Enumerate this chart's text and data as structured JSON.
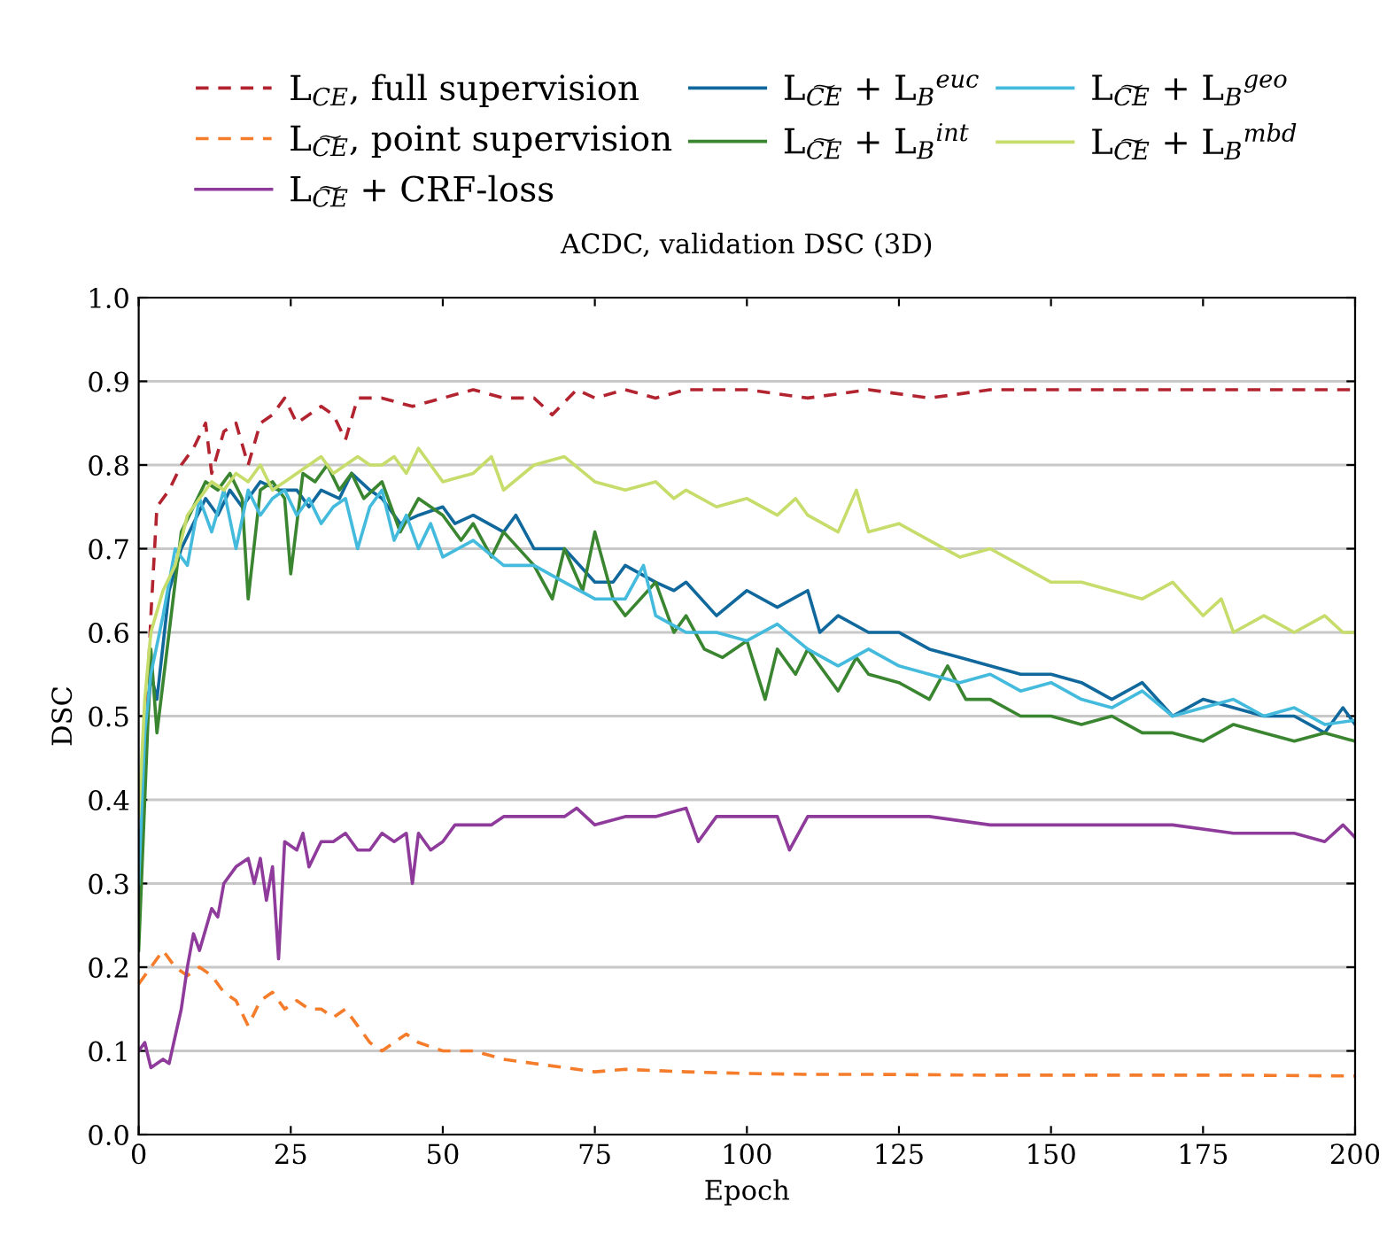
{
  "chart_data": {
    "type": "line",
    "title": "ACDC, validation DSC (3D)",
    "xlabel": "Epoch",
    "ylabel": "DSC",
    "xlim": [
      0,
      200
    ],
    "xticks": [
      0,
      25,
      50,
      75,
      100,
      125,
      150,
      175,
      200
    ],
    "ylim": [
      0,
      1.0
    ],
    "yticks": [
      {
        "value": 0,
        "label": "0.0"
      },
      0.1,
      0.2,
      0.3,
      0.4,
      0.5,
      0.6,
      0.7,
      0.8,
      0.9,
      {
        "value": 1.0,
        "label": "1.0"
      }
    ],
    "grid": "y",
    "legend": "top",
    "series": [
      {
        "name": "L$_{CE}$, full supervision",
        "color": "#b2242f",
        "line_style": "dashed",
        "x": [
          0,
          1,
          2,
          3,
          5,
          7,
          9,
          11,
          12,
          14,
          16,
          18,
          20,
          22,
          24,
          26,
          28,
          30,
          32,
          34,
          36,
          40,
          45,
          50,
          55,
          60,
          65,
          68,
          72,
          75,
          80,
          85,
          90,
          100,
          110,
          120,
          130,
          140,
          150,
          160,
          170,
          180,
          190,
          200
        ],
        "values": [
          0.3,
          0.45,
          0.62,
          0.75,
          0.77,
          0.8,
          0.82,
          0.85,
          0.79,
          0.84,
          0.85,
          0.8,
          0.85,
          0.86,
          0.88,
          0.85,
          0.86,
          0.87,
          0.86,
          0.83,
          0.88,
          0.88,
          0.87,
          0.88,
          0.89,
          0.88,
          0.88,
          0.86,
          0.89,
          0.88,
          0.89,
          0.88,
          0.89,
          0.89,
          0.88,
          0.89,
          0.88,
          0.89,
          0.89,
          0.89,
          0.89,
          0.89,
          0.89,
          0.89
        ]
      },
      {
        "name": "L$_{C͠E}$, point supervision",
        "color": "#f47c2a",
        "line_style": "dashed",
        "x": [
          0,
          2,
          4,
          6,
          8,
          10,
          12,
          14,
          16,
          18,
          20,
          22,
          24,
          26,
          28,
          30,
          32,
          34,
          36,
          38,
          40,
          42,
          44,
          46,
          50,
          55,
          60,
          65,
          70,
          75,
          80,
          90,
          100,
          110,
          120,
          140,
          160,
          180,
          200
        ],
        "values": [
          0.18,
          0.2,
          0.22,
          0.2,
          0.19,
          0.2,
          0.19,
          0.17,
          0.16,
          0.13,
          0.16,
          0.17,
          0.15,
          0.16,
          0.15,
          0.15,
          0.14,
          0.15,
          0.13,
          0.11,
          0.1,
          0.11,
          0.12,
          0.11,
          0.1,
          0.1,
          0.09,
          0.085,
          0.08,
          0.075,
          0.078,
          0.075,
          0.073,
          0.072,
          0.072,
          0.071,
          0.071,
          0.071,
          0.07
        ]
      },
      {
        "name": "L$_{C͠E}$ + CRF-loss",
        "color": "#8e3b9b",
        "line_style": "solid",
        "x": [
          0,
          1,
          2,
          4,
          5,
          7,
          8,
          9,
          10,
          12,
          13,
          14,
          16,
          18,
          19,
          20,
          21,
          22,
          23,
          24,
          26,
          27,
          28,
          30,
          32,
          34,
          36,
          38,
          40,
          42,
          44,
          45,
          46,
          48,
          50,
          52,
          55,
          58,
          60,
          65,
          70,
          72,
          75,
          80,
          85,
          90,
          92,
          95,
          100,
          105,
          107,
          110,
          120,
          130,
          140,
          150,
          160,
          170,
          180,
          185,
          190,
          195,
          198,
          200
        ],
        "values": [
          0.1,
          0.11,
          0.08,
          0.09,
          0.085,
          0.15,
          0.2,
          0.24,
          0.22,
          0.27,
          0.26,
          0.3,
          0.32,
          0.33,
          0.3,
          0.33,
          0.28,
          0.32,
          0.21,
          0.35,
          0.34,
          0.36,
          0.32,
          0.35,
          0.35,
          0.36,
          0.34,
          0.34,
          0.36,
          0.35,
          0.36,
          0.3,
          0.36,
          0.34,
          0.35,
          0.37,
          0.37,
          0.37,
          0.38,
          0.38,
          0.38,
          0.39,
          0.37,
          0.38,
          0.38,
          0.39,
          0.35,
          0.38,
          0.38,
          0.38,
          0.34,
          0.38,
          0.38,
          0.38,
          0.37,
          0.37,
          0.37,
          0.37,
          0.36,
          0.36,
          0.36,
          0.35,
          0.37,
          0.355
        ]
      },
      {
        "name": "L$_{C͠E}$ + L$_{B}$$^{euc}$",
        "color": "#10689c",
        "line_style": "solid",
        "x": [
          0,
          1,
          2,
          3,
          5,
          7,
          9,
          11,
          13,
          15,
          17,
          20,
          23,
          26,
          28,
          30,
          33,
          35,
          38,
          40,
          43,
          46,
          50,
          52,
          55,
          60,
          62,
          65,
          70,
          75,
          78,
          80,
          85,
          88,
          90,
          95,
          100,
          105,
          110,
          112,
          115,
          120,
          125,
          130,
          135,
          140,
          145,
          150,
          155,
          160,
          165,
          170,
          175,
          180,
          185,
          190,
          195,
          198,
          200
        ],
        "values": [
          0.25,
          0.45,
          0.55,
          0.52,
          0.65,
          0.7,
          0.73,
          0.76,
          0.74,
          0.77,
          0.75,
          0.78,
          0.77,
          0.77,
          0.75,
          0.77,
          0.76,
          0.79,
          0.77,
          0.76,
          0.73,
          0.74,
          0.75,
          0.73,
          0.74,
          0.72,
          0.74,
          0.7,
          0.7,
          0.66,
          0.66,
          0.68,
          0.66,
          0.65,
          0.66,
          0.62,
          0.65,
          0.63,
          0.65,
          0.6,
          0.62,
          0.6,
          0.6,
          0.58,
          0.57,
          0.56,
          0.55,
          0.55,
          0.54,
          0.52,
          0.54,
          0.5,
          0.52,
          0.51,
          0.5,
          0.5,
          0.48,
          0.51,
          0.49
        ]
      },
      {
        "name": "L$_{C͠E}$ + L$_{B}$$^{int}$",
        "color": "#3a8530",
        "line_style": "solid",
        "x": [
          0,
          1,
          2,
          3,
          5,
          7,
          9,
          11,
          13,
          15,
          17,
          18,
          20,
          22,
          24,
          25,
          27,
          29,
          31,
          33,
          35,
          37,
          40,
          43,
          46,
          50,
          53,
          55,
          58,
          60,
          65,
          68,
          70,
          73,
          75,
          78,
          80,
          85,
          88,
          90,
          93,
          96,
          100,
          103,
          105,
          108,
          110,
          115,
          118,
          120,
          125,
          130,
          133,
          136,
          140,
          145,
          150,
          155,
          160,
          165,
          170,
          175,
          180,
          185,
          190,
          195,
          200
        ],
        "values": [
          0.22,
          0.4,
          0.58,
          0.48,
          0.6,
          0.72,
          0.75,
          0.78,
          0.77,
          0.79,
          0.76,
          0.64,
          0.77,
          0.78,
          0.76,
          0.67,
          0.79,
          0.78,
          0.8,
          0.77,
          0.79,
          0.76,
          0.78,
          0.72,
          0.76,
          0.74,
          0.71,
          0.73,
          0.69,
          0.72,
          0.68,
          0.64,
          0.7,
          0.65,
          0.72,
          0.64,
          0.62,
          0.66,
          0.6,
          0.62,
          0.58,
          0.57,
          0.59,
          0.52,
          0.58,
          0.55,
          0.58,
          0.53,
          0.57,
          0.55,
          0.54,
          0.52,
          0.56,
          0.52,
          0.52,
          0.5,
          0.5,
          0.49,
          0.5,
          0.48,
          0.48,
          0.47,
          0.49,
          0.48,
          0.47,
          0.48,
          0.47
        ]
      },
      {
        "name": "L$_{C͠E}$ + L$_{B}$$^{geo}$",
        "color": "#44bbdd",
        "line_style": "solid",
        "x": [
          0,
          1,
          2,
          4,
          6,
          8,
          10,
          12,
          14,
          16,
          18,
          20,
          22,
          24,
          26,
          28,
          30,
          32,
          34,
          36,
          38,
          40,
          42,
          44,
          46,
          48,
          50,
          55,
          60,
          65,
          70,
          75,
          80,
          83,
          85,
          90,
          95,
          100,
          105,
          110,
          115,
          120,
          125,
          130,
          135,
          140,
          145,
          150,
          155,
          160,
          165,
          170,
          175,
          180,
          185,
          190,
          195,
          200
        ],
        "values": [
          0.3,
          0.48,
          0.55,
          0.62,
          0.7,
          0.68,
          0.76,
          0.72,
          0.77,
          0.7,
          0.77,
          0.74,
          0.76,
          0.77,
          0.74,
          0.76,
          0.73,
          0.75,
          0.76,
          0.7,
          0.75,
          0.77,
          0.71,
          0.74,
          0.7,
          0.73,
          0.69,
          0.71,
          0.68,
          0.68,
          0.66,
          0.64,
          0.64,
          0.68,
          0.62,
          0.6,
          0.6,
          0.59,
          0.61,
          0.58,
          0.56,
          0.58,
          0.56,
          0.55,
          0.54,
          0.55,
          0.53,
          0.54,
          0.52,
          0.51,
          0.53,
          0.5,
          0.51,
          0.52,
          0.5,
          0.51,
          0.49,
          0.495
        ]
      },
      {
        "name": "L$_{C͠E}$ + L$_{B}$$^{mbd}$",
        "color": "#c6dc6b",
        "line_style": "solid",
        "x": [
          0,
          1,
          2,
          4,
          6,
          8,
          10,
          12,
          14,
          16,
          18,
          20,
          22,
          24,
          26,
          28,
          30,
          32,
          34,
          36,
          38,
          40,
          42,
          44,
          46,
          48,
          50,
          55,
          58,
          60,
          65,
          70,
          75,
          80,
          85,
          88,
          90,
          95,
          100,
          105,
          108,
          110,
          115,
          118,
          120,
          125,
          130,
          135,
          140,
          145,
          150,
          155,
          160,
          165,
          170,
          175,
          178,
          180,
          185,
          190,
          195,
          198,
          200
        ],
        "values": [
          0.38,
          0.52,
          0.6,
          0.65,
          0.68,
          0.74,
          0.76,
          0.78,
          0.77,
          0.79,
          0.78,
          0.8,
          0.77,
          0.78,
          0.79,
          0.8,
          0.81,
          0.79,
          0.8,
          0.81,
          0.8,
          0.8,
          0.81,
          0.79,
          0.82,
          0.8,
          0.78,
          0.79,
          0.81,
          0.77,
          0.8,
          0.81,
          0.78,
          0.77,
          0.78,
          0.76,
          0.77,
          0.75,
          0.76,
          0.74,
          0.76,
          0.74,
          0.72,
          0.77,
          0.72,
          0.73,
          0.71,
          0.69,
          0.7,
          0.68,
          0.66,
          0.66,
          0.65,
          0.64,
          0.66,
          0.62,
          0.64,
          0.6,
          0.62,
          0.6,
          0.62,
          0.6,
          0.6
        ]
      }
    ]
  }
}
